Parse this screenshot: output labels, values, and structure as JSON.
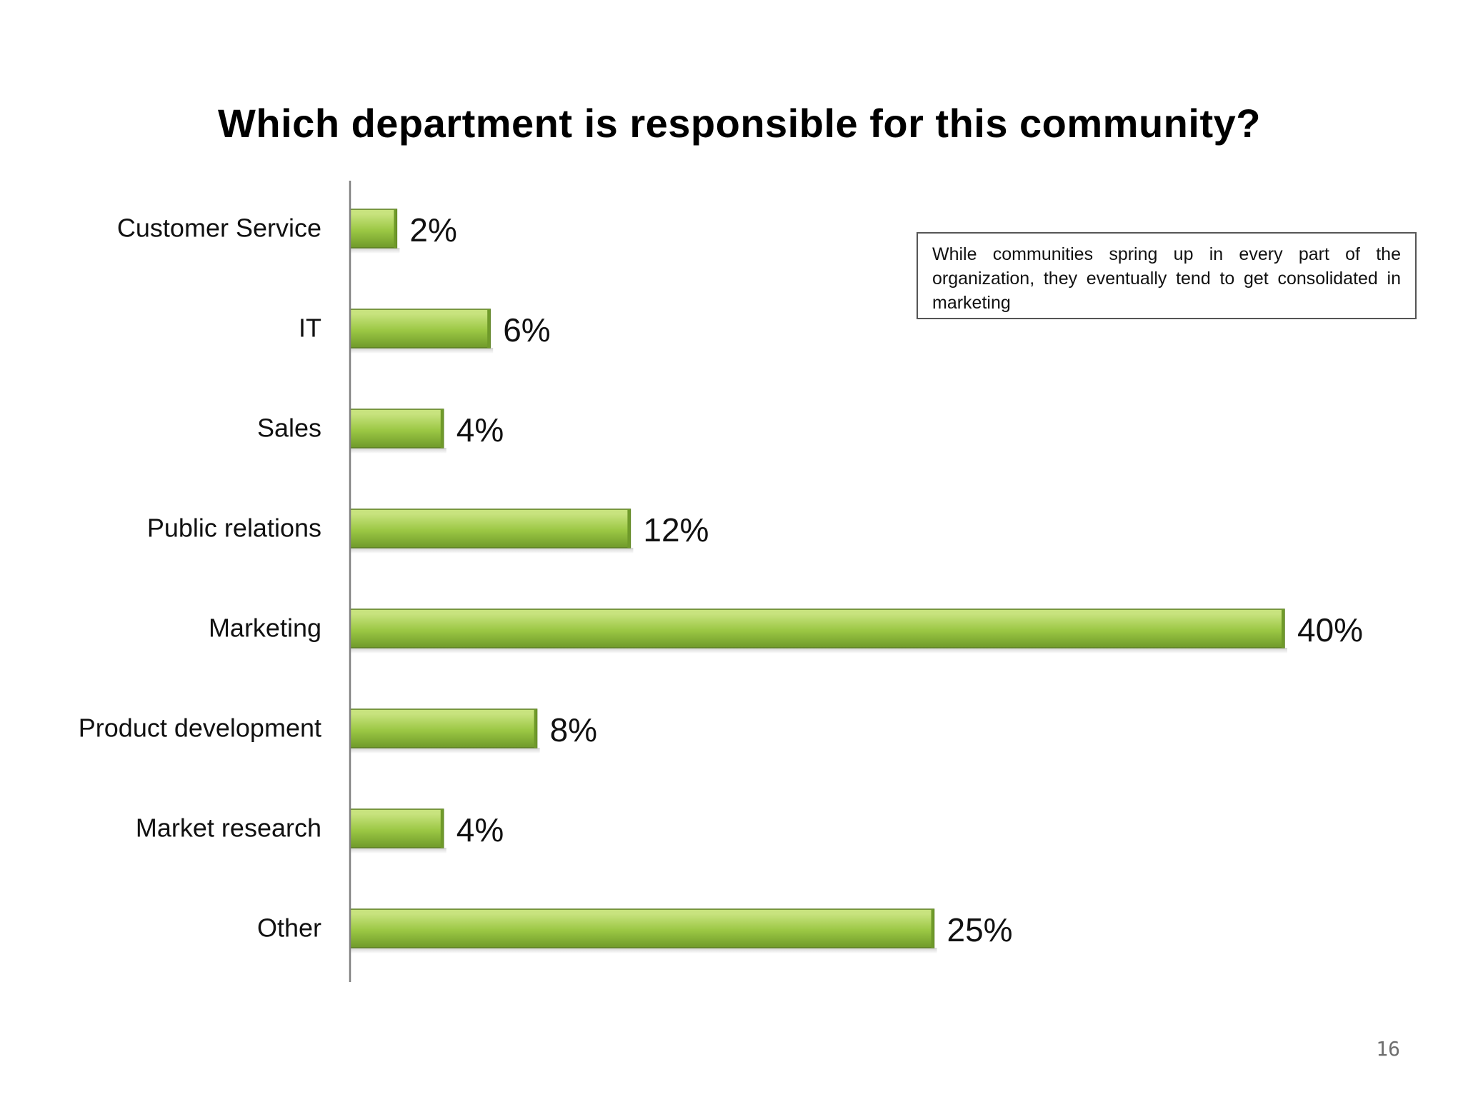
{
  "page": {
    "number": "16"
  },
  "note": {
    "text": "While communities spring up in every part of the organization, they eventually tend to get consolidated in marketing"
  },
  "colors": {
    "bar_top": "#c8e37e",
    "bar_mid": "#9bc744",
    "bar_bottom": "#6f9a2a",
    "bar_edge": "#5a7d22",
    "axis": "#808080"
  },
  "chart_data": {
    "type": "bar",
    "orientation": "horizontal",
    "title": "Which department is responsible for this community?",
    "categories": [
      "Customer Service",
      "IT",
      "Sales",
      "Public relations",
      "Marketing",
      "Product development",
      "Market research",
      "Other"
    ],
    "values": [
      2,
      6,
      4,
      12,
      40,
      8,
      4,
      25
    ],
    "value_labels": [
      "2%",
      "6%",
      "4%",
      "12%",
      "40%",
      "8%",
      "4%",
      "25%"
    ],
    "unit": "%",
    "xlim": [
      0,
      40
    ],
    "xlabel": "",
    "ylabel": "",
    "grid": false,
    "legend": "none"
  }
}
